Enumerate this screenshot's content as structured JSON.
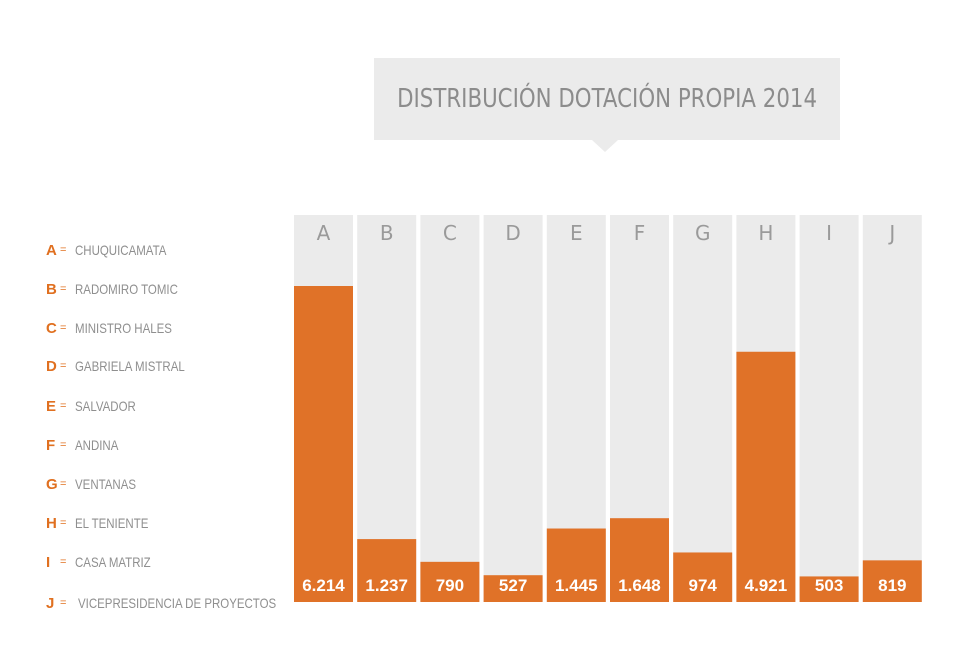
{
  "title": "DISTRIBUCIÓN DOTACIÓN PROPIA 2014",
  "legend": [
    {
      "letter": "A",
      "eq": "=",
      "name": "CHUQUICAMATA"
    },
    {
      "letter": "B",
      "eq": "=",
      "name": "RADOMIRO TOMIC"
    },
    {
      "letter": "C",
      "eq": "=",
      "name": "MINISTRO HALES"
    },
    {
      "letter": "D",
      "eq": "=",
      "name": "GABRIELA MISTRAL"
    },
    {
      "letter": "E",
      "eq": "=",
      "name": "SALVADOR"
    },
    {
      "letter": "F",
      "eq": "=",
      "name": "ANDINA"
    },
    {
      "letter": "G",
      "eq": "=",
      "name": "VENTANAS"
    },
    {
      "letter": "H",
      "eq": "=",
      "name": "EL TENIENTE"
    },
    {
      "letter": "I",
      "eq": "=",
      "name": "CASA MATRIZ"
    },
    {
      "letter": "J",
      "eq": "=",
      "name": "VICEPRESIDENCIA DE PROYECTOS"
    }
  ],
  "colors": {
    "bar": "#e07228",
    "track": "#ebebeb",
    "letter": "#9a9a9a",
    "value_text": "#ffffff"
  },
  "chart_data": {
    "type": "bar",
    "title": "DISTRIBUCIÓN DOTACIÓN PROPIA 2014",
    "categories": [
      "A",
      "B",
      "C",
      "D",
      "E",
      "F",
      "G",
      "H",
      "I",
      "J"
    ],
    "values": [
      6214,
      1237,
      790,
      527,
      1445,
      1648,
      974,
      4921,
      503,
      819
    ],
    "value_labels": [
      "6.214",
      "1.237",
      "790",
      "527",
      "1.445",
      "1.648",
      "974",
      "4.921",
      "503",
      "819"
    ],
    "xlabel": "",
    "ylabel": "",
    "grid": false,
    "legend_position": "left"
  }
}
